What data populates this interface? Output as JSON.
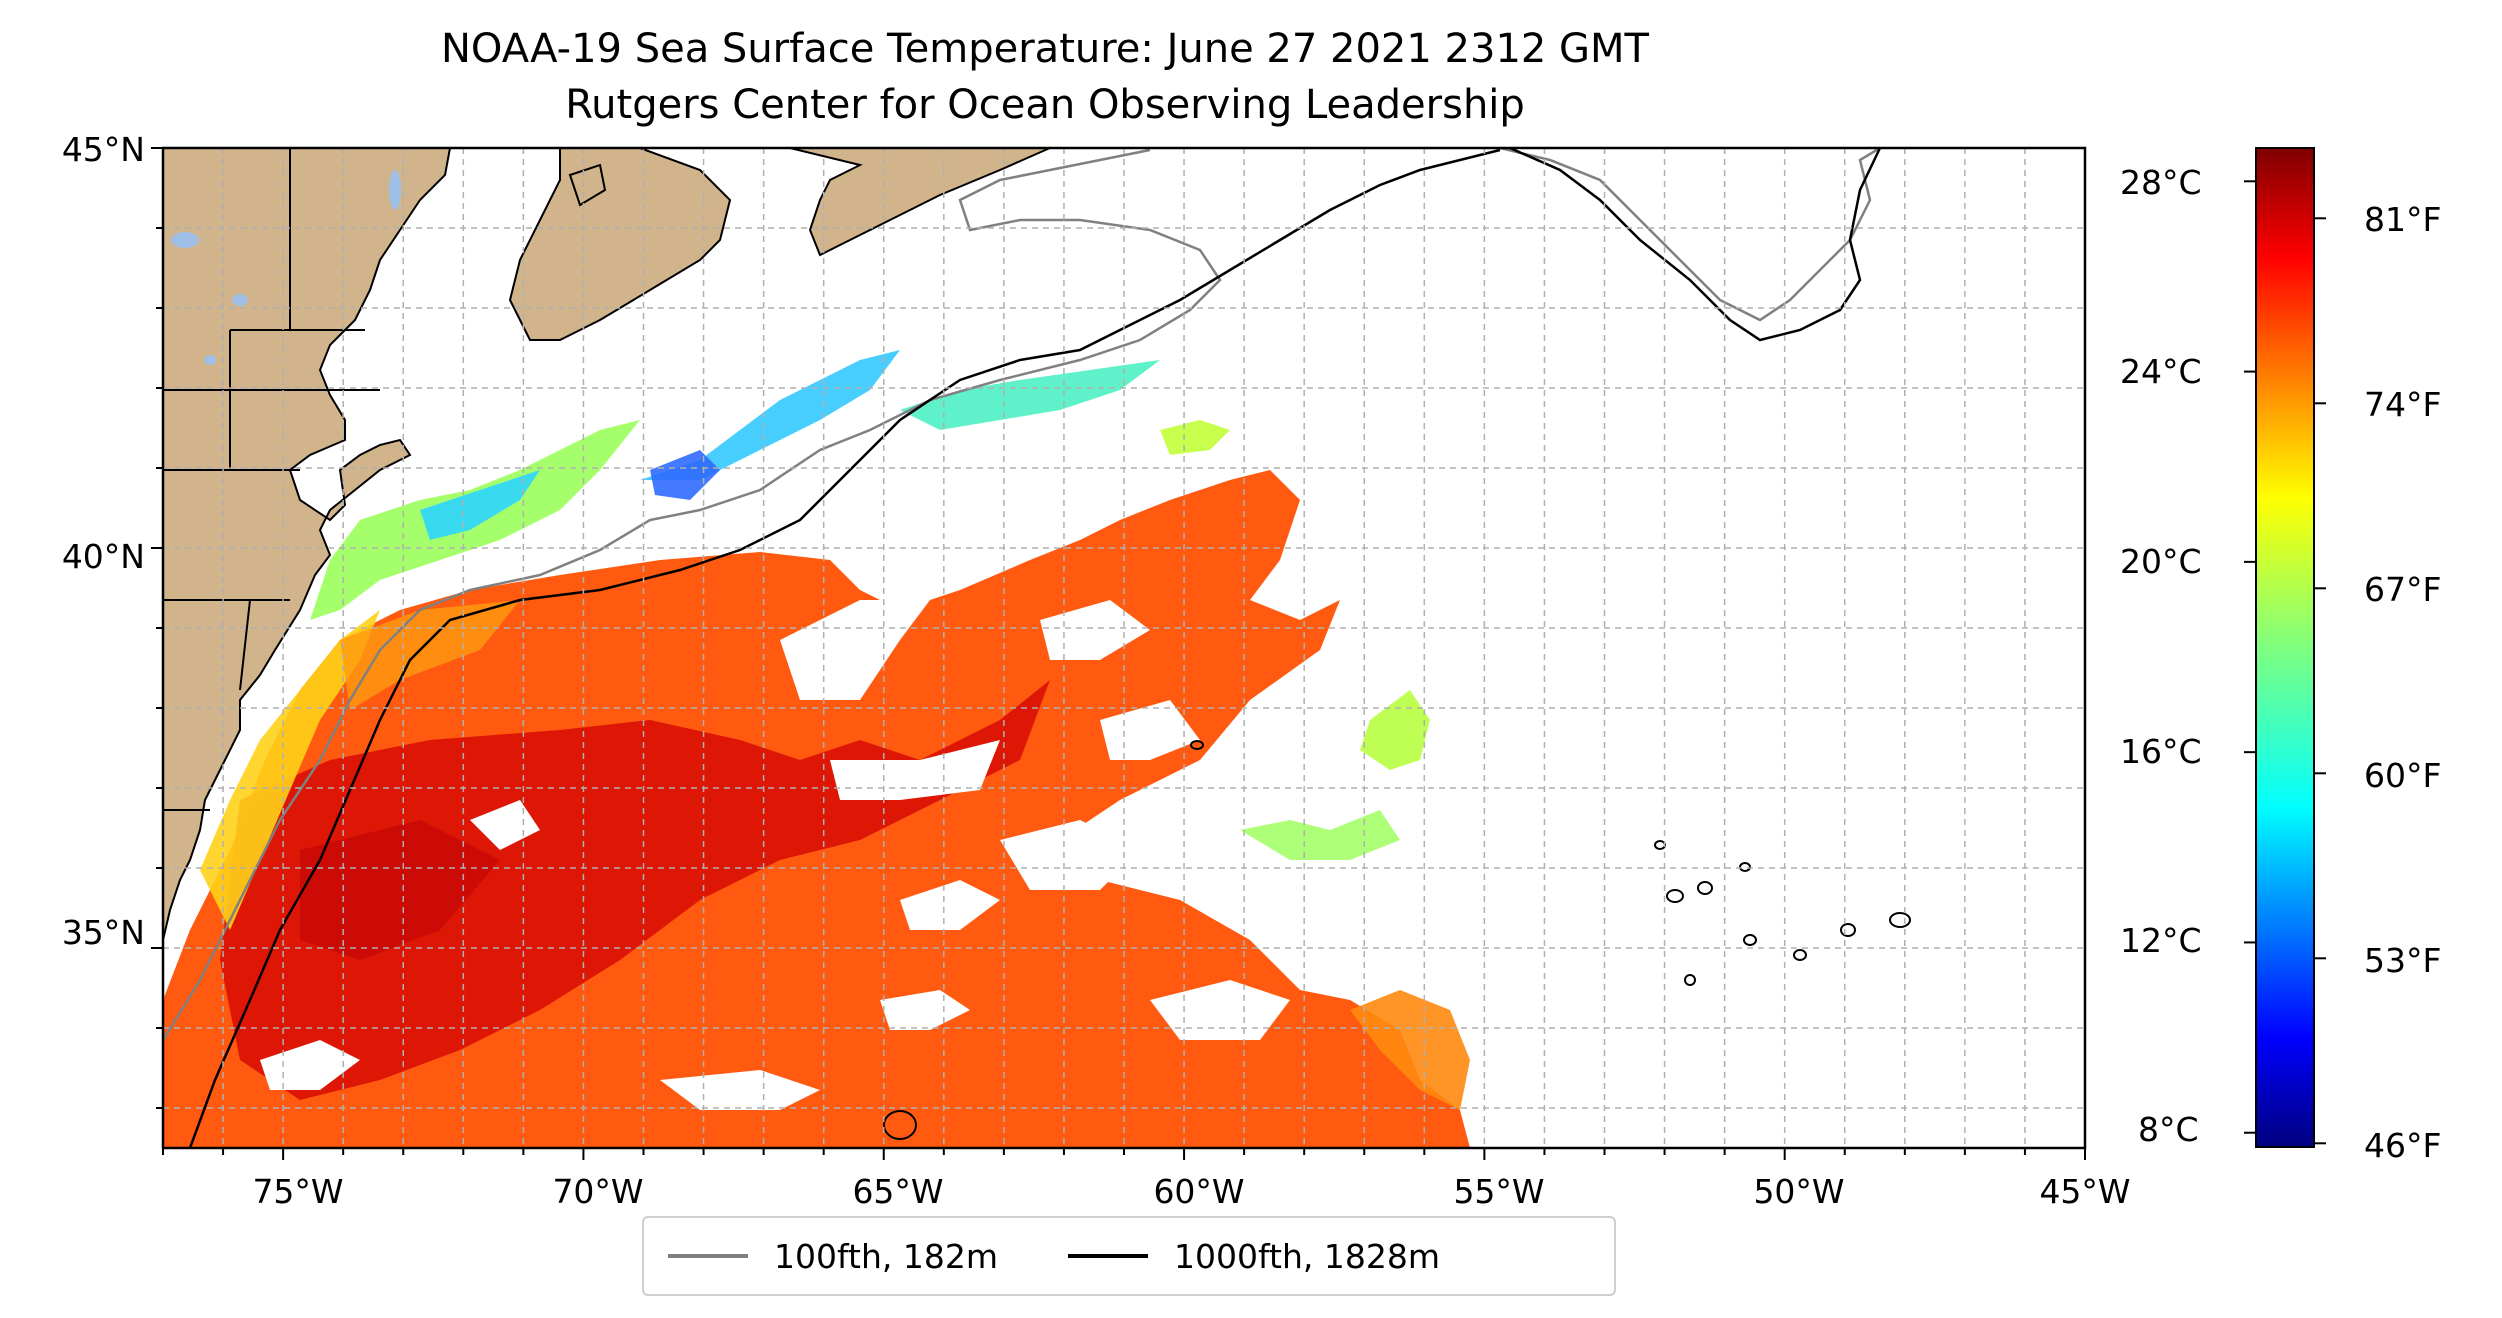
{
  "title": {
    "line1": "NOAA-19 Sea Surface Temperature: June 27 2021 2312 GMT",
    "line2": "Rutgers Center for Ocean Observing Leadership"
  },
  "map": {
    "lon_range": [
      -77,
      -45
    ],
    "lat_range": [
      32.5,
      45
    ],
    "lat_ticks": [
      {
        "value": 45,
        "label": "45°N"
      },
      {
        "value": 40,
        "label": "40°N"
      },
      {
        "value": 35,
        "label": "35°N"
      }
    ],
    "lon_ticks": [
      {
        "value": -75,
        "label": "75°W"
      },
      {
        "value": -70,
        "label": "70°W"
      },
      {
        "value": -65,
        "label": "65°W"
      },
      {
        "value": -60,
        "label": "60°W"
      },
      {
        "value": -55,
        "label": "55°W"
      },
      {
        "value": -50,
        "label": "50°W"
      },
      {
        "value": -45,
        "label": "45°W"
      }
    ],
    "gridlines": "dashed, every 1 degree",
    "land_color": "#d2b48c",
    "water_body_color": "#9fbfe6"
  },
  "colorbar": {
    "celsius_labels": [
      "28°C",
      "24°C",
      "20°C",
      "16°C",
      "12°C",
      "8°C"
    ],
    "fahrenheit_labels": [
      "81°F",
      "74°F",
      "67°F",
      "60°F",
      "53°F",
      "46°F"
    ],
    "colormap": "jet",
    "range_c": [
      7.7,
      28.7
    ]
  },
  "legend": {
    "items": [
      {
        "label": "100fth, 182m",
        "color": "#808080"
      },
      {
        "label": "1000fth, 1828m",
        "color": "#000000"
      }
    ]
  }
}
